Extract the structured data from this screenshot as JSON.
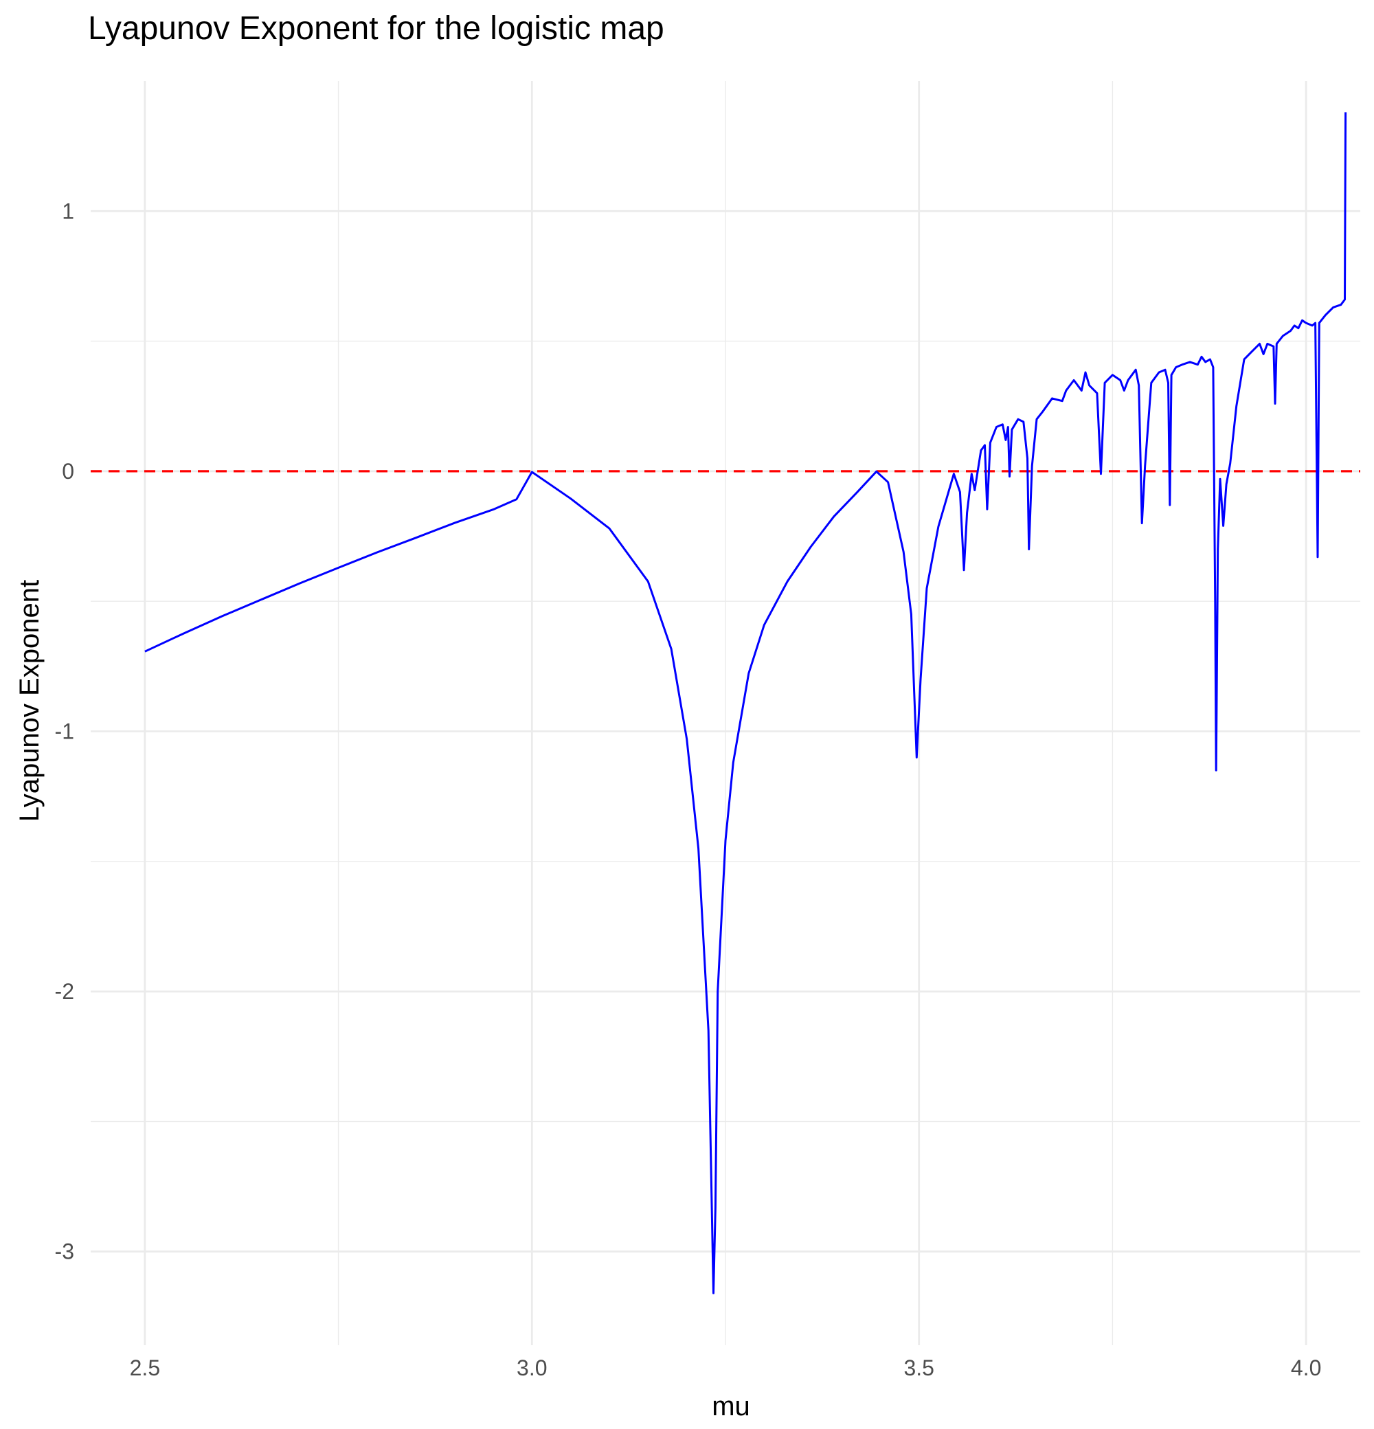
{
  "chart_data": {
    "type": "line",
    "title": "Lyapunov Exponent for the logistic map",
    "xlabel": "mu",
    "ylabel": "Lyapunov Exponent",
    "xlim": [
      2.43,
      4.07
    ],
    "ylim": [
      -3.36,
      1.5
    ],
    "x_ticks": [
      2.5,
      3.0,
      3.5,
      4.0
    ],
    "x_tick_labels": [
      "2.5",
      "3.0",
      "3.5",
      "4.0"
    ],
    "y_ticks": [
      -3,
      -2,
      -1,
      0,
      1
    ],
    "y_tick_labels": [
      "-3",
      "-2",
      "-1",
      "0",
      "1"
    ],
    "grid": true,
    "legend": "none",
    "reference_line": {
      "y": 0,
      "style": "dashed",
      "color": "#ff0000"
    },
    "series": [
      {
        "color": "#0000ff",
        "points": [
          [
            2.5,
            -0.693
          ],
          [
            2.55,
            -0.624
          ],
          [
            2.6,
            -0.557
          ],
          [
            2.65,
            -0.494
          ],
          [
            2.7,
            -0.431
          ],
          [
            2.75,
            -0.371
          ],
          [
            2.8,
            -0.312
          ],
          [
            2.85,
            -0.256
          ],
          [
            2.9,
            -0.199
          ],
          [
            2.95,
            -0.147
          ],
          [
            2.98,
            -0.108
          ],
          [
            3.0,
            -0.003
          ],
          [
            3.05,
            -0.105
          ],
          [
            3.1,
            -0.22
          ],
          [
            3.15,
            -0.424
          ],
          [
            3.18,
            -0.683
          ],
          [
            3.2,
            -1.03
          ],
          [
            3.215,
            -1.45
          ],
          [
            3.228,
            -2.15
          ],
          [
            3.2345,
            -3.16
          ],
          [
            3.237,
            -2.83
          ],
          [
            3.24,
            -2.0
          ],
          [
            3.25,
            -1.42
          ],
          [
            3.26,
            -1.12
          ],
          [
            3.28,
            -0.777
          ],
          [
            3.3,
            -0.591
          ],
          [
            3.33,
            -0.424
          ],
          [
            3.36,
            -0.291
          ],
          [
            3.39,
            -0.174
          ],
          [
            3.42,
            -0.081
          ],
          [
            3.445,
            -0.001
          ],
          [
            3.46,
            -0.042
          ],
          [
            3.48,
            -0.31
          ],
          [
            3.49,
            -0.55
          ],
          [
            3.497,
            -1.1
          ],
          [
            3.502,
            -0.8
          ],
          [
            3.51,
            -0.45
          ],
          [
            3.525,
            -0.213
          ],
          [
            3.545,
            -0.01
          ],
          [
            3.553,
            -0.08
          ],
          [
            3.558,
            -0.38
          ],
          [
            3.562,
            -0.16
          ],
          [
            3.568,
            -0.01
          ],
          [
            3.572,
            -0.073
          ],
          [
            3.58,
            0.08
          ],
          [
            3.585,
            0.1
          ],
          [
            3.588,
            -0.146
          ],
          [
            3.592,
            0.11
          ],
          [
            3.6,
            0.17
          ],
          [
            3.608,
            0.18
          ],
          [
            3.612,
            0.12
          ],
          [
            3.615,
            0.17
          ],
          [
            3.617,
            -0.02
          ],
          [
            3.62,
            0.16
          ],
          [
            3.628,
            0.2
          ],
          [
            3.635,
            0.19
          ],
          [
            3.64,
            0.05
          ],
          [
            3.642,
            -0.3
          ],
          [
            3.646,
            0.02
          ],
          [
            3.652,
            0.2
          ],
          [
            3.66,
            0.23
          ],
          [
            3.672,
            0.28
          ],
          [
            3.685,
            0.27
          ],
          [
            3.69,
            0.31
          ],
          [
            3.7,
            0.35
          ],
          [
            3.71,
            0.31
          ],
          [
            3.715,
            0.38
          ],
          [
            3.72,
            0.33
          ],
          [
            3.73,
            0.3
          ],
          [
            3.735,
            -0.01
          ],
          [
            3.74,
            0.34
          ],
          [
            3.75,
            0.37
          ],
          [
            3.76,
            0.35
          ],
          [
            3.765,
            0.31
          ],
          [
            3.77,
            0.35
          ],
          [
            3.78,
            0.39
          ],
          [
            3.784,
            0.33
          ],
          [
            3.788,
            -0.2
          ],
          [
            3.792,
            0.02
          ],
          [
            3.8,
            0.34
          ],
          [
            3.81,
            0.38
          ],
          [
            3.818,
            0.39
          ],
          [
            3.822,
            0.34
          ],
          [
            3.824,
            -0.13
          ],
          [
            3.826,
            0.37
          ],
          [
            3.832,
            0.4
          ],
          [
            3.84,
            0.41
          ],
          [
            3.85,
            0.42
          ],
          [
            3.86,
            0.41
          ],
          [
            3.865,
            0.44
          ],
          [
            3.87,
            0.42
          ],
          [
            3.876,
            0.43
          ],
          [
            3.88,
            0.4
          ],
          [
            3.8826,
            -0.5
          ],
          [
            3.8838,
            -1.15
          ],
          [
            3.886,
            -0.3
          ],
          [
            3.889,
            -0.03
          ],
          [
            3.893,
            -0.21
          ],
          [
            3.897,
            -0.05
          ],
          [
            3.902,
            0.03
          ],
          [
            3.91,
            0.25
          ],
          [
            3.92,
            0.43
          ],
          [
            3.93,
            0.46
          ],
          [
            3.94,
            0.49
          ],
          [
            3.945,
            0.45
          ],
          [
            3.95,
            0.49
          ],
          [
            3.958,
            0.48
          ],
          [
            3.96,
            0.26
          ],
          [
            3.962,
            0.49
          ],
          [
            3.97,
            0.52
          ],
          [
            3.98,
            0.54
          ],
          [
            3.985,
            0.56
          ],
          [
            3.99,
            0.55
          ],
          [
            3.995,
            0.58
          ],
          [
            4.0,
            0.57
          ],
          [
            4.008,
            0.56
          ],
          [
            4.012,
            0.57
          ],
          [
            4.015,
            -0.33
          ],
          [
            4.017,
            0.57
          ],
          [
            4.025,
            0.6
          ],
          [
            4.035,
            0.63
          ],
          [
            4.045,
            0.64
          ],
          [
            4.05,
            0.66
          ],
          [
            4.0505,
            1.0
          ],
          [
            4.051,
            1.38
          ]
        ]
      }
    ]
  }
}
